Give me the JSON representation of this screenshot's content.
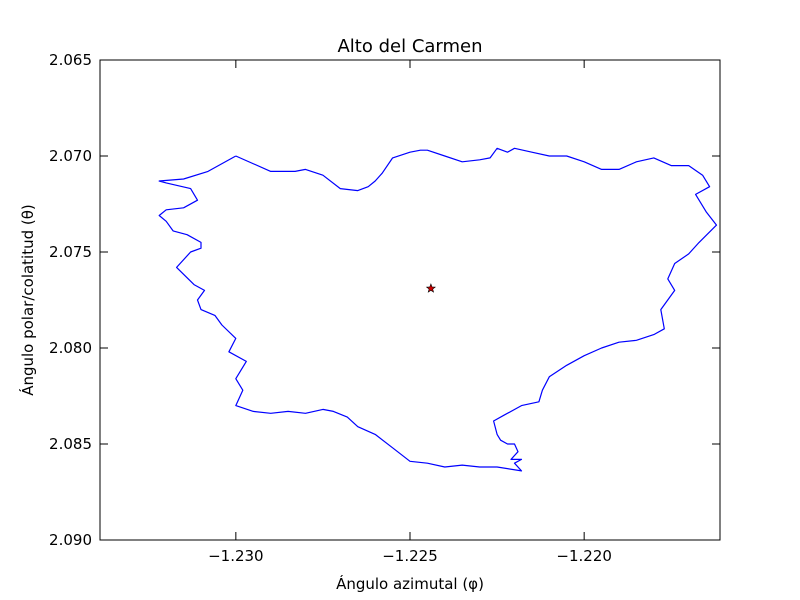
{
  "chart_data": {
    "type": "line",
    "title": "Alto del Carmen",
    "xlabel": "Ángulo azimutal (φ)",
    "ylabel": "Ángulo polar/colatitud (θ)",
    "xlim": [
      -1.2339,
      -1.2161
    ],
    "ylim": [
      2.065,
      2.09
    ],
    "y_inverted": true,
    "grid": false,
    "x_ticks": [
      -1.23,
      -1.225,
      -1.22
    ],
    "x_tick_labels": [
      "−1.230",
      "−1.225",
      "−1.220"
    ],
    "y_ticks": [
      2.065,
      2.07,
      2.075,
      2.08,
      2.085,
      2.09
    ],
    "y_tick_labels": [
      "2.065",
      "2.070",
      "2.075",
      "2.080",
      "2.085",
      "2.090"
    ],
    "series": [
      {
        "kind": "boundary",
        "color": "#0000ff",
        "x": [
          -1.23,
          -1.229,
          -1.2283,
          -1.228,
          -1.2275,
          -1.227,
          -1.2265,
          -1.2262,
          -1.226,
          -1.2258,
          -1.2255,
          -1.225,
          -1.2247,
          -1.2245,
          -1.224,
          -1.2235,
          -1.223,
          -1.2227,
          -1.2225,
          -1.2222,
          -1.222,
          -1.2215,
          -1.221,
          -1.2205,
          -1.22,
          -1.2195,
          -1.219,
          -1.2185,
          -1.218,
          -1.2175,
          -1.217,
          -1.2166,
          -1.2164,
          -1.2168,
          -1.2165,
          -1.2162,
          -1.2167,
          -1.217,
          -1.2174,
          -1.2176,
          -1.2174,
          -1.2178,
          -1.2177,
          -1.218,
          -1.2185,
          -1.219,
          -1.2195,
          -1.22,
          -1.2205,
          -1.221,
          -1.2212,
          -1.2213,
          -1.2218,
          -1.2223,
          -1.2226,
          -1.2225,
          -1.2224,
          -1.2222,
          -1.222,
          -1.2219,
          -1.2221,
          -1.2218,
          -1.222,
          -1.2218,
          -1.2225,
          -1.223,
          -1.2235,
          -1.224,
          -1.2245,
          -1.225,
          -1.2255,
          -1.226,
          -1.2265,
          -1.2268,
          -1.2272,
          -1.2275,
          -1.228,
          -1.2285,
          -1.229,
          -1.2295,
          -1.23,
          -1.2298,
          -1.23,
          -1.2297,
          -1.2302,
          -1.23,
          -1.2304,
          -1.2306,
          -1.231,
          -1.2311,
          -1.2309,
          -1.2312,
          -1.2317,
          -1.2313,
          -1.231,
          -1.231,
          -1.2314,
          -1.2318,
          -1.232,
          -1.2322,
          -1.232,
          -1.2315,
          -1.2311,
          -1.2313,
          -1.232,
          -1.2322,
          -1.2315,
          -1.2308,
          -1.23
        ],
        "y": [
          2.07,
          2.0708,
          2.0708,
          2.0707,
          2.071,
          2.0717,
          2.0718,
          2.0716,
          2.0713,
          2.0709,
          2.0701,
          2.0698,
          2.0697,
          2.0697,
          2.07,
          2.0703,
          2.0702,
          2.0701,
          2.0696,
          2.0698,
          2.0696,
          2.0698,
          2.07,
          2.07,
          2.0703,
          2.0707,
          2.0707,
          2.0703,
          2.0701,
          2.0705,
          2.0705,
          2.071,
          2.0716,
          2.072,
          2.0729,
          2.0736,
          2.0745,
          2.0751,
          2.0756,
          2.0764,
          2.077,
          2.078,
          2.079,
          2.0793,
          2.0796,
          2.0797,
          2.08,
          2.0804,
          2.0809,
          2.0815,
          2.0822,
          2.0828,
          2.083,
          2.0835,
          2.0838,
          2.0845,
          2.0848,
          2.085,
          2.085,
          2.0854,
          2.0858,
          2.0858,
          2.086,
          2.0864,
          2.0862,
          2.0862,
          2.0861,
          2.0862,
          2.086,
          2.0859,
          2.0852,
          2.0845,
          2.0841,
          2.0836,
          2.0833,
          2.0832,
          2.0834,
          2.0833,
          2.0834,
          2.0833,
          2.083,
          2.0822,
          2.0816,
          2.0807,
          2.0802,
          2.0795,
          2.0788,
          2.0783,
          2.078,
          2.0775,
          2.077,
          2.0767,
          2.0758,
          2.075,
          2.0748,
          2.0745,
          2.0741,
          2.0739,
          2.0734,
          2.0731,
          2.0728,
          2.0727,
          2.0723,
          2.0717,
          2.0714,
          2.0713,
          2.0712,
          2.0708,
          2.07
        ]
      },
      {
        "kind": "centroid-marker",
        "marker": "star",
        "color": "#cc0000",
        "x": [
          -1.2244
        ],
        "y": [
          2.0769
        ]
      }
    ]
  }
}
